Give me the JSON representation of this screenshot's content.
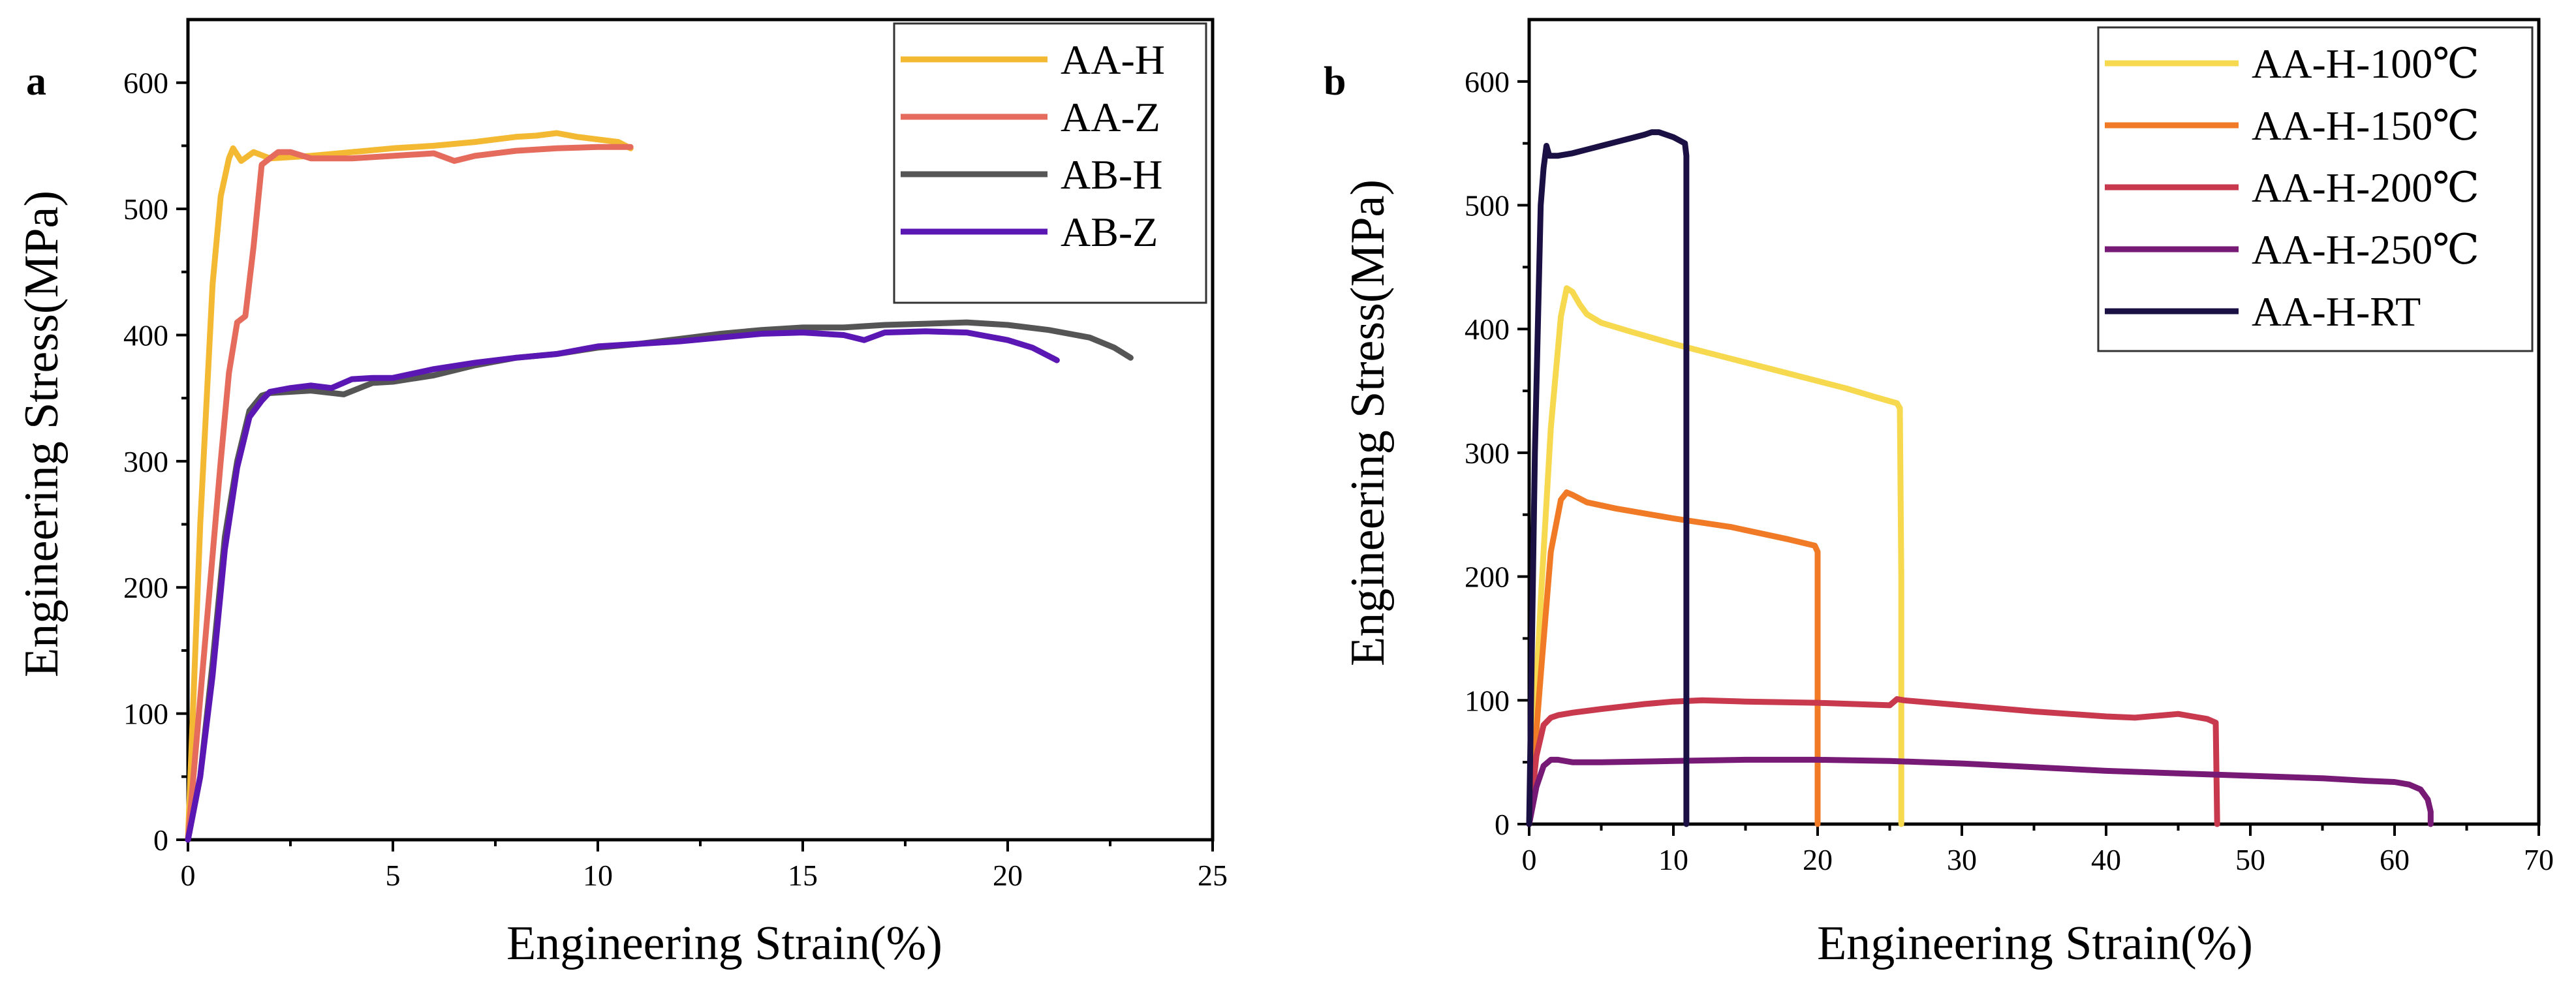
{
  "chart_data": [
    {
      "panel": "a",
      "type": "line",
      "xlabel": "Engineering Strain(%)",
      "ylabel": "Engineering Stress(MPa)",
      "xlim": [
        0,
        25
      ],
      "ylim": [
        0,
        650
      ],
      "xticks": [
        0,
        5,
        10,
        15,
        20,
        25
      ],
      "yticks": [
        0,
        100,
        200,
        300,
        400,
        500,
        600
      ],
      "legend_position": "top-right",
      "series": [
        {
          "name": "AA-H",
          "color": "#F4B932",
          "x": [
            0,
            0.3,
            0.6,
            0.8,
            1.0,
            1.1,
            1.3,
            1.6,
            2.0,
            3.0,
            4.0,
            5.0,
            6.0,
            7.0,
            8.0,
            8.5,
            9.0,
            9.5,
            10.0,
            10.5,
            10.8
          ],
          "y": [
            0,
            250,
            440,
            510,
            540,
            548,
            538,
            545,
            540,
            542,
            545,
            548,
            550,
            553,
            557,
            558,
            560,
            557,
            555,
            553,
            548
          ]
        },
        {
          "name": "AA-Z",
          "color": "#E56B5D",
          "x": [
            0,
            0.4,
            0.8,
            1.0,
            1.2,
            1.4,
            1.6,
            1.8,
            2.0,
            2.2,
            2.5,
            3.0,
            4.0,
            5.0,
            6.0,
            6.5,
            7.0,
            8.0,
            9.0,
            10.0,
            10.8
          ],
          "y": [
            0,
            150,
            300,
            370,
            410,
            415,
            470,
            535,
            540,
            545,
            545,
            540,
            540,
            542,
            544,
            538,
            542,
            546,
            548,
            549,
            549
          ]
        },
        {
          "name": "AB-H",
          "color": "#555555",
          "x": [
            0,
            0.3,
            0.6,
            0.9,
            1.2,
            1.5,
            1.8,
            2.0,
            2.5,
            3.0,
            3.8,
            4.5,
            5.0,
            6.0,
            7.0,
            8.0,
            9.0,
            10.0,
            11.0,
            12.0,
            13.0,
            14.0,
            15.0,
            16.0,
            17.0,
            18.0,
            19.0,
            20.0,
            21.0,
            22.0,
            22.6,
            23.0
          ],
          "y": [
            0,
            50,
            140,
            240,
            300,
            340,
            352,
            354,
            355,
            356,
            353,
            362,
            363,
            368,
            376,
            382,
            385,
            390,
            393,
            397,
            401,
            404,
            406,
            406,
            408,
            409,
            410,
            408,
            404,
            398,
            390,
            382
          ]
        },
        {
          "name": "AB-Z",
          "color": "#5B17B4",
          "x": [
            0,
            0.3,
            0.6,
            0.9,
            1.2,
            1.5,
            1.8,
            2.0,
            2.5,
            3.0,
            3.5,
            4.0,
            4.5,
            5.0,
            6.0,
            7.0,
            8.0,
            9.0,
            10.0,
            11.0,
            12.0,
            13.0,
            14.0,
            15.0,
            16.0,
            16.5,
            17.0,
            18.0,
            19.0,
            20.0,
            20.6,
            21.2
          ],
          "y": [
            0,
            50,
            130,
            230,
            295,
            335,
            348,
            355,
            358,
            360,
            358,
            365,
            366,
            366,
            373,
            378,
            382,
            385,
            391,
            393,
            395,
            398,
            401,
            402,
            400,
            396,
            402,
            403,
            402,
            396,
            390,
            380
          ]
        }
      ]
    },
    {
      "panel": "b",
      "type": "line",
      "xlabel": "Engineering Strain(%)",
      "ylabel": "Engineering Stress(MPa)",
      "xlim": [
        0,
        70
      ],
      "ylim": [
        0,
        650
      ],
      "xticks": [
        0,
        10,
        20,
        30,
        40,
        50,
        60,
        70
      ],
      "yticks": [
        0,
        100,
        200,
        300,
        400,
        500,
        600
      ],
      "legend_position": "top-right",
      "series": [
        {
          "name": "AA-H-100℃",
          "color": "#F6D94E",
          "x": [
            0,
            0.8,
            1.5,
            2.2,
            2.6,
            3.0,
            3.5,
            4.0,
            5.0,
            7.0,
            10.0,
            14.0,
            18.0,
            22.0,
            24.0,
            25.5,
            25.7,
            25.8,
            25.8
          ],
          "y": [
            0,
            180,
            320,
            410,
            433,
            430,
            420,
            412,
            405,
            398,
            388,
            376,
            364,
            352,
            345,
            340,
            336,
            200,
            0
          ]
        },
        {
          "name": "AA-H-150℃",
          "color": "#F07A26",
          "x": [
            0,
            0.8,
            1.5,
            2.2,
            2.6,
            3.0,
            4.0,
            6.0,
            10.0,
            14.0,
            18.0,
            19.8,
            20.0,
            20.0
          ],
          "y": [
            0,
            120,
            220,
            262,
            268,
            266,
            260,
            255,
            247,
            240,
            230,
            225,
            220,
            0
          ]
        },
        {
          "name": "AA-H-200℃",
          "color": "#C8394E",
          "x": [
            0,
            0.5,
            1.0,
            1.5,
            2.0,
            3.0,
            5.0,
            8.0,
            10.0,
            12.0,
            15.0,
            20.0,
            25.0,
            25.5,
            26.0,
            30.0,
            35.0,
            40.0,
            42.0,
            44.0,
            45.0,
            46.0,
            47.0,
            47.6,
            47.7
          ],
          "y": [
            0,
            55,
            80,
            86,
            88,
            90,
            93,
            97,
            99,
            100,
            99,
            98,
            96,
            101,
            100,
            96,
            91,
            87,
            86,
            88,
            89,
            87,
            85,
            82,
            0
          ]
        },
        {
          "name": "AA-H-250℃",
          "color": "#771A76",
          "x": [
            0,
            0.5,
            1.0,
            1.5,
            2.0,
            3.0,
            5.0,
            10.0,
            15.0,
            20.0,
            25.0,
            30.0,
            35.0,
            40.0,
            45.0,
            50.0,
            55.0,
            58.0,
            60.0,
            61.0,
            61.8,
            62.3,
            62.5,
            62.5
          ],
          "y": [
            0,
            30,
            47,
            52,
            52,
            50,
            50,
            51,
            52,
            52,
            51,
            49,
            46,
            43,
            41,
            39,
            37,
            35,
            34,
            32,
            28,
            20,
            10,
            0
          ]
        },
        {
          "name": "AA-H-RT",
          "color": "#1B1044",
          "x": [
            0,
            0.4,
            0.8,
            1.0,
            1.2,
            1.4,
            2.0,
            3.0,
            4.0,
            5.0,
            6.0,
            7.0,
            8.0,
            8.5,
            9.0,
            10.0,
            10.8,
            10.9,
            10.9
          ],
          "y": [
            0,
            300,
            500,
            530,
            548,
            540,
            540,
            542,
            545,
            548,
            551,
            554,
            557,
            559,
            559,
            555,
            550,
            540,
            0
          ]
        }
      ]
    }
  ]
}
